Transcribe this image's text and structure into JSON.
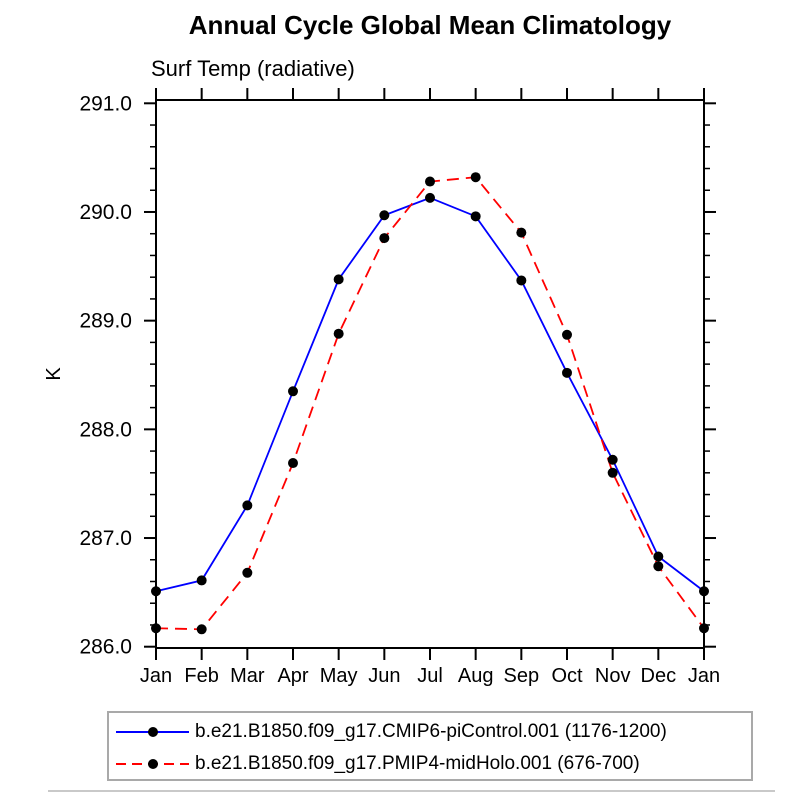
{
  "page": {
    "title": "Annual Cycle Global Mean Climatology",
    "subtitle": "Surf Temp (radiative)"
  },
  "chart_data": {
    "type": "line",
    "title": "Annual Cycle Global Mean Climatology",
    "subtitle": "Surf Temp (radiative)",
    "xlabel": "",
    "ylabel": "K",
    "categories": [
      "Jan",
      "Feb",
      "Mar",
      "Apr",
      "May",
      "Jun",
      "Jul",
      "Aug",
      "Sep",
      "Oct",
      "Nov",
      "Dec",
      "Jan"
    ],
    "ylim": [
      286.0,
      291.0
    ],
    "ytick_interval": 1.0,
    "yminor_interval": 0.2,
    "ytick_labels": [
      "286.0",
      "287.0",
      "288.0",
      "289.0",
      "290.0",
      "291.0"
    ],
    "grid": false,
    "legend_position": "bottom",
    "series": [
      {
        "name": "b.e21.B1850.f09_g17.CMIP6-piControl.001 (1176-1200)",
        "color": "#0000ff",
        "line_style": "solid",
        "marker": "filled-circle",
        "marker_color": "#000000",
        "values": [
          286.51,
          286.61,
          287.3,
          288.35,
          289.38,
          289.97,
          290.13,
          289.96,
          289.37,
          288.52,
          287.72,
          286.83,
          286.51
        ]
      },
      {
        "name": "b.e21.B1850.f09_g17.PMIP4-midHolo.001 (676-700)",
        "color": "#ff0000",
        "line_style": "dashed",
        "marker": "filled-circle",
        "marker_color": "#000000",
        "values": [
          286.17,
          286.16,
          286.68,
          287.69,
          288.88,
          289.76,
          290.28,
          290.32,
          289.81,
          288.87,
          287.6,
          286.74,
          286.17
        ]
      }
    ]
  },
  "colors": {
    "axis": "#000000",
    "text": "#000000",
    "legend_border": "#a9a9a9",
    "bottom_rule": "#c9c9c9"
  }
}
